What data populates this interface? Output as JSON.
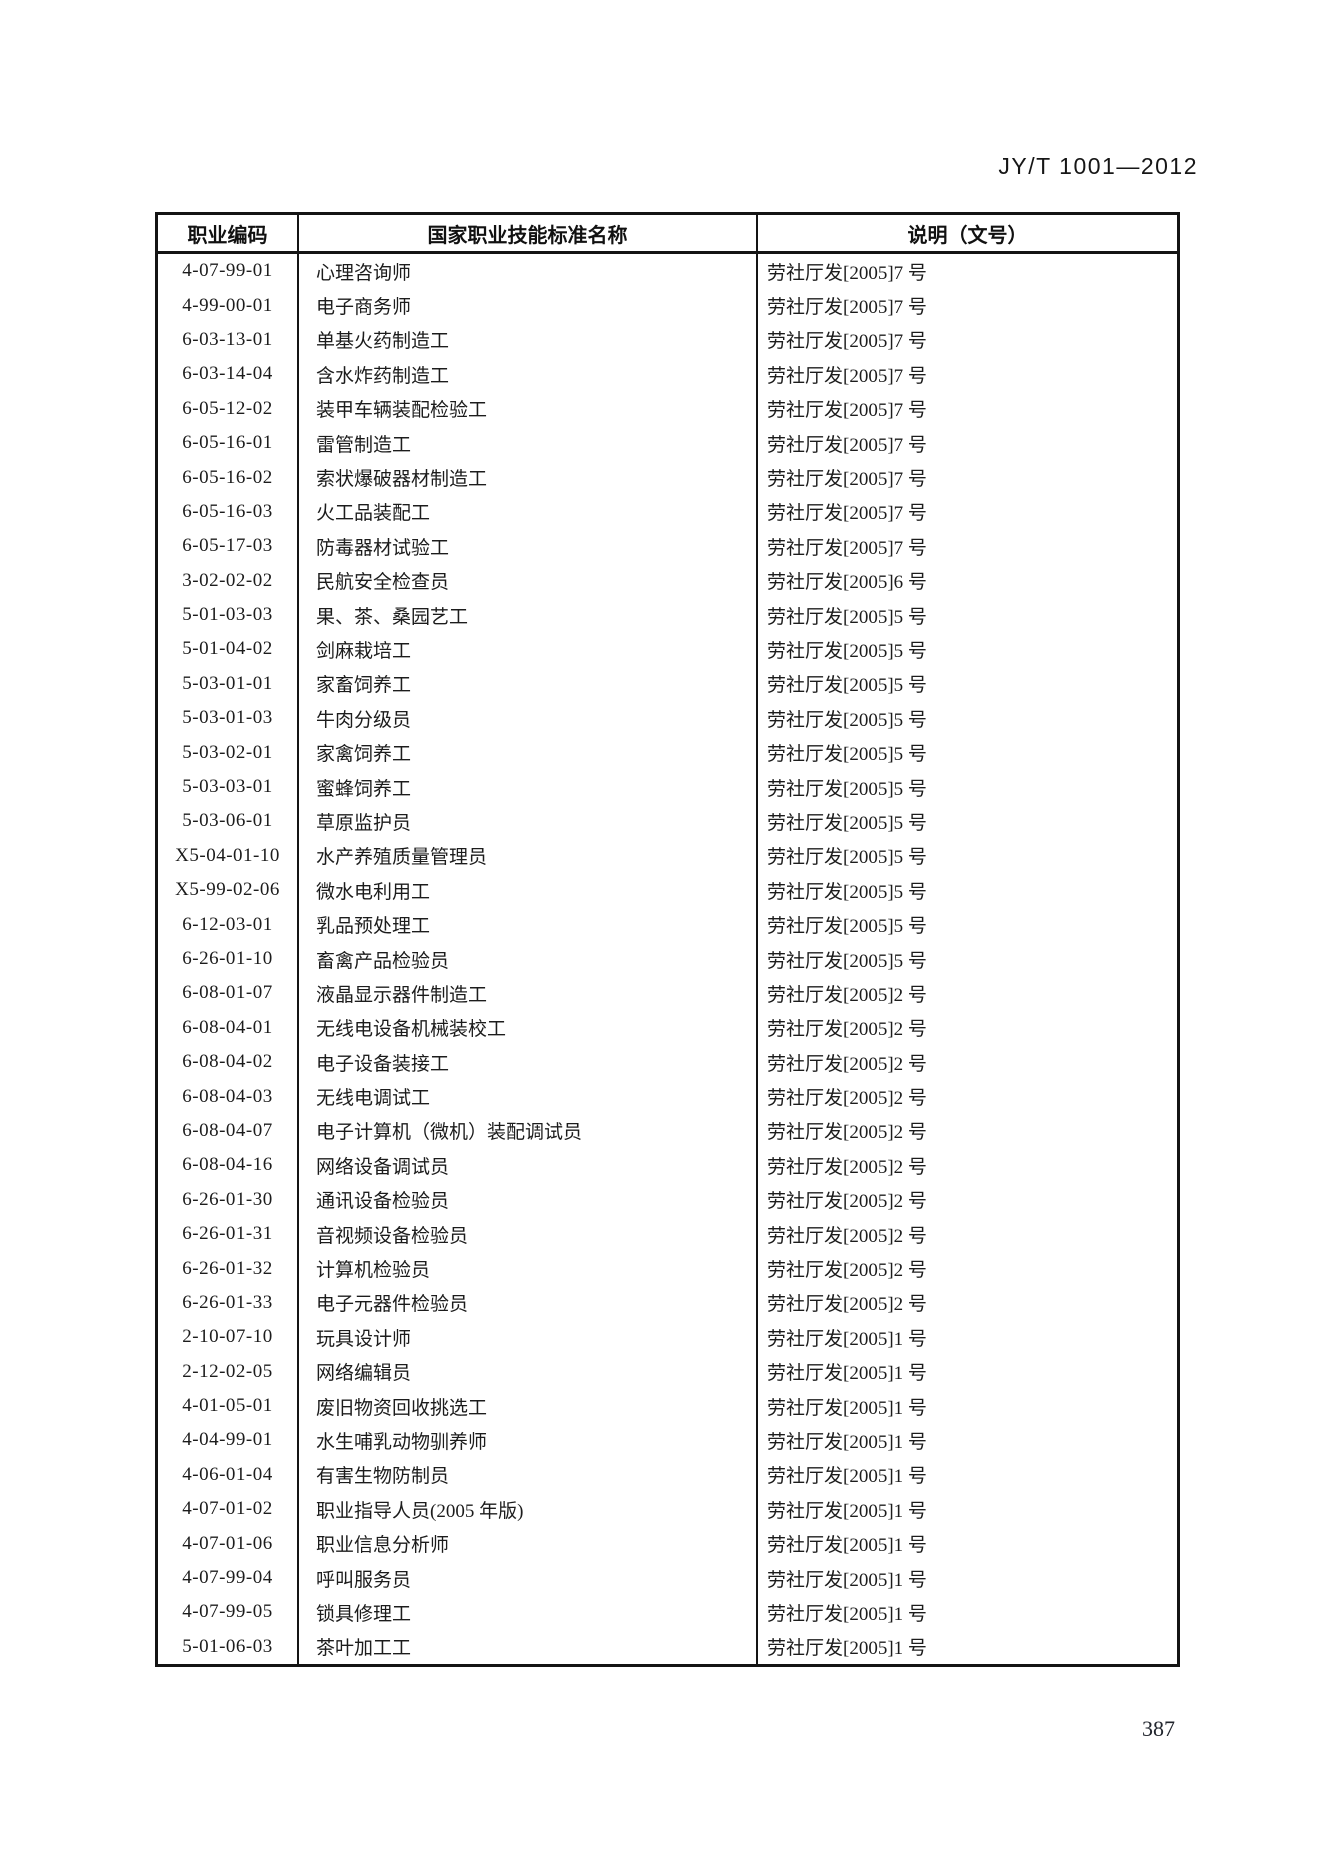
{
  "page": {
    "doc_code": "JY/T 1001—2012",
    "page_number": "387"
  },
  "table": {
    "columns": [
      "职业编码",
      "国家职业技能标准名称",
      "说明（文号）"
    ],
    "rows": [
      {
        "code": "4-07-99-01",
        "name": "心理咨询师",
        "note": "劳社厅发[2005]7 号"
      },
      {
        "code": "4-99-00-01",
        "name": "电子商务师",
        "note": "劳社厅发[2005]7 号"
      },
      {
        "code": "6-03-13-01",
        "name": "单基火药制造工",
        "note": "劳社厅发[2005]7 号"
      },
      {
        "code": "6-03-14-04",
        "name": "含水炸药制造工",
        "note": "劳社厅发[2005]7 号"
      },
      {
        "code": "6-05-12-02",
        "name": "装甲车辆装配检验工",
        "note": "劳社厅发[2005]7 号"
      },
      {
        "code": "6-05-16-01",
        "name": "雷管制造工",
        "note": "劳社厅发[2005]7 号"
      },
      {
        "code": "6-05-16-02",
        "name": "索状爆破器材制造工",
        "note": "劳社厅发[2005]7 号"
      },
      {
        "code": "6-05-16-03",
        "name": "火工品装配工",
        "note": "劳社厅发[2005]7 号"
      },
      {
        "code": "6-05-17-03",
        "name": "防毒器材试验工",
        "note": "劳社厅发[2005]7 号"
      },
      {
        "code": "3-02-02-02",
        "name": "民航安全检查员",
        "note": "劳社厅发[2005]6 号"
      },
      {
        "code": "5-01-03-03",
        "name": "果、茶、桑园艺工",
        "note": "劳社厅发[2005]5 号"
      },
      {
        "code": "5-01-04-02",
        "name": "剑麻栽培工",
        "note": "劳社厅发[2005]5 号"
      },
      {
        "code": "5-03-01-01",
        "name": "家畜饲养工",
        "note": "劳社厅发[2005]5 号"
      },
      {
        "code": "5-03-01-03",
        "name": "牛肉分级员",
        "note": "劳社厅发[2005]5 号"
      },
      {
        "code": "5-03-02-01",
        "name": "家禽饲养工",
        "note": "劳社厅发[2005]5 号"
      },
      {
        "code": "5-03-03-01",
        "name": "蜜蜂饲养工",
        "note": "劳社厅发[2005]5 号"
      },
      {
        "code": "5-03-06-01",
        "name": "草原监护员",
        "note": "劳社厅发[2005]5 号"
      },
      {
        "code": "X5-04-01-10",
        "name": "水产养殖质量管理员",
        "note": "劳社厅发[2005]5 号"
      },
      {
        "code": "X5-99-02-06",
        "name": "微水电利用工",
        "note": "劳社厅发[2005]5 号"
      },
      {
        "code": "6-12-03-01",
        "name": "乳品预处理工",
        "note": "劳社厅发[2005]5 号"
      },
      {
        "code": "6-26-01-10",
        "name": "畜禽产品检验员",
        "note": "劳社厅发[2005]5 号"
      },
      {
        "code": "6-08-01-07",
        "name": "液晶显示器件制造工",
        "note": "劳社厅发[2005]2 号"
      },
      {
        "code": "6-08-04-01",
        "name": "无线电设备机械装校工",
        "note": "劳社厅发[2005]2 号"
      },
      {
        "code": "6-08-04-02",
        "name": "电子设备装接工",
        "note": "劳社厅发[2005]2 号"
      },
      {
        "code": "6-08-04-03",
        "name": "无线电调试工",
        "note": "劳社厅发[2005]2 号"
      },
      {
        "code": "6-08-04-07",
        "name": "电子计算机（微机）装配调试员",
        "note": "劳社厅发[2005]2 号"
      },
      {
        "code": "6-08-04-16",
        "name": "网络设备调试员",
        "note": "劳社厅发[2005]2 号"
      },
      {
        "code": "6-26-01-30",
        "name": "通讯设备检验员",
        "note": "劳社厅发[2005]2 号"
      },
      {
        "code": "6-26-01-31",
        "name": "音视频设备检验员",
        "note": "劳社厅发[2005]2 号"
      },
      {
        "code": "6-26-01-32",
        "name": "计算机检验员",
        "note": "劳社厅发[2005]2 号"
      },
      {
        "code": "6-26-01-33",
        "name": "电子元器件检验员",
        "note": "劳社厅发[2005]2 号"
      },
      {
        "code": "2-10-07-10",
        "name": "玩具设计师",
        "note": "劳社厅发[2005]1 号"
      },
      {
        "code": "2-12-02-05",
        "name": "网络编辑员",
        "note": "劳社厅发[2005]1 号"
      },
      {
        "code": "4-01-05-01",
        "name": "废旧物资回收挑选工",
        "note": "劳社厅发[2005]1 号"
      },
      {
        "code": "4-04-99-01",
        "name": "水生哺乳动物驯养师",
        "note": "劳社厅发[2005]1 号"
      },
      {
        "code": "4-06-01-04",
        "name": "有害生物防制员",
        "note": "劳社厅发[2005]1 号"
      },
      {
        "code": "4-07-01-02",
        "name": "职业指导人员(2005 年版)",
        "note": "劳社厅发[2005]1 号"
      },
      {
        "code": "4-07-01-06",
        "name": "职业信息分析师",
        "note": "劳社厅发[2005]1 号"
      },
      {
        "code": "4-07-99-04",
        "name": "呼叫服务员",
        "note": "劳社厅发[2005]1 号"
      },
      {
        "code": "4-07-99-05",
        "name": "锁具修理工",
        "note": "劳社厅发[2005]1 号"
      },
      {
        "code": "5-01-06-03",
        "name": "茶叶加工工",
        "note": "劳社厅发[2005]1 号"
      }
    ]
  }
}
